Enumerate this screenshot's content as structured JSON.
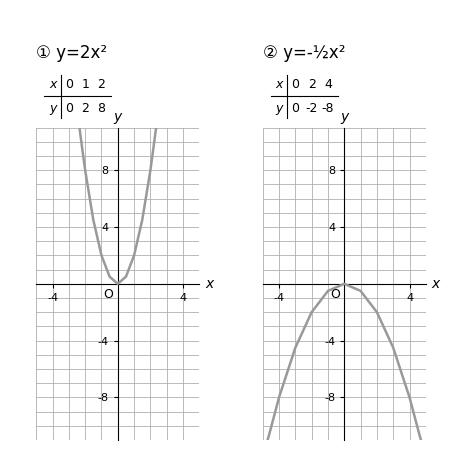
{
  "chart_data": [
    {
      "type": "line",
      "title": "① y=2x²",
      "table": {
        "header": [
          "x",
          "y"
        ],
        "x": [
          0,
          1,
          2
        ],
        "y": [
          0,
          2,
          8
        ]
      },
      "x_label": "x",
      "y_label": "y",
      "annotations": [
        "O"
      ],
      "x": [
        -2.35,
        -2.2,
        -2,
        -1.5,
        -1,
        -0.5,
        0,
        0.5,
        1,
        1.5,
        2,
        2.2,
        2.35
      ],
      "values": [
        11,
        9.7,
        8,
        4.5,
        2,
        0.5,
        0,
        0.5,
        2,
        4.5,
        8,
        9.7,
        11
      ],
      "color": "#999999",
      "xlim": [
        -5,
        5
      ],
      "ylim": [
        -11,
        11
      ],
      "xticks": [
        -4,
        4
      ],
      "yticks": [
        -8,
        -4,
        4,
        8
      ],
      "grid": true
    },
    {
      "type": "line",
      "title": "② y=-½x²",
      "table": {
        "header": [
          "x",
          "y"
        ],
        "x": [
          0,
          2,
          4
        ],
        "y": [
          0,
          -2,
          -8
        ]
      },
      "x_label": "x",
      "y_label": "y",
      "annotations": [
        "O"
      ],
      "x": [
        -4.7,
        -4.6,
        -4,
        -3,
        -2,
        -1,
        0,
        1,
        2,
        3,
        4,
        4.6,
        4.7
      ],
      "values": [
        -11,
        -10.6,
        -8,
        -4.5,
        -2,
        -0.5,
        0,
        -0.5,
        -2,
        -4.5,
        -8,
        -10.6,
        -11
      ],
      "color": "#999999",
      "xlim": [
        -5,
        5
      ],
      "ylim": [
        -11,
        11
      ],
      "xticks": [
        -4,
        4
      ],
      "yticks": [
        -8,
        -4,
        4,
        8
      ],
      "grid": true
    }
  ]
}
